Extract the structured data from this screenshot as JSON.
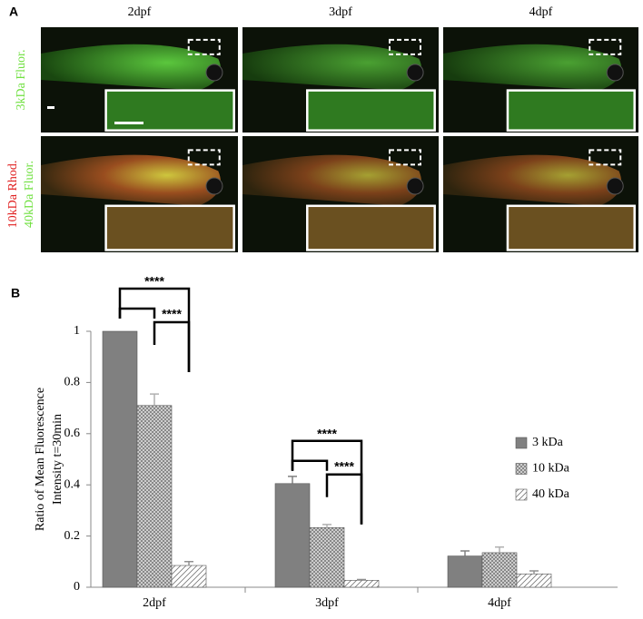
{
  "panel_a": {
    "label": "A",
    "columns": [
      "2dpf",
      "3dpf",
      "4dpf"
    ],
    "rows": [
      [
        "3kDa Fluor."
      ],
      [
        "10kDa Rhod.",
        "40kDa Fluor."
      ]
    ]
  },
  "chart_data": {
    "type": "bar",
    "panel_label": "B",
    "y_label": [
      "Ratio of Mean Fluorescence",
      "Intensity t=30min"
    ],
    "categories": [
      "2dpf",
      "3dpf",
      "4dpf"
    ],
    "series": [
      {
        "name": "3 kDa",
        "color": "#808080",
        "values": [
          1,
          0.405,
          0.122
        ],
        "errors": [
          0,
          0.028,
          0.02
        ]
      },
      {
        "name": "10 kDa",
        "color": "#b0b0b0",
        "values": [
          0.71,
          0.233,
          0.135
        ],
        "errors": [
          0.045,
          0.012,
          0.022
        ]
      },
      {
        "name": "40 kDa",
        "color": "#909090",
        "values": [
          0.085,
          0.027,
          0.052
        ],
        "errors": [
          0.015,
          0.003,
          0.012
        ]
      }
    ],
    "ylim": [
      0,
      1
    ],
    "yticks": [
      0,
      0.2,
      0.4,
      0.6,
      0.8,
      1
    ],
    "annotations": [
      "****",
      "****",
      "****",
      "****"
    ]
  }
}
